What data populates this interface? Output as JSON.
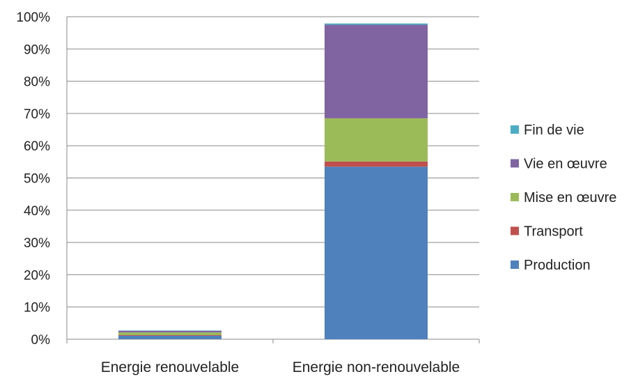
{
  "chart_data": {
    "type": "bar",
    "stacked": true,
    "title": "",
    "xlabel": "",
    "ylabel": "",
    "ylim": [
      0,
      100
    ],
    "y_ticks": [
      "0%",
      "10%",
      "20%",
      "30%",
      "40%",
      "50%",
      "60%",
      "70%",
      "80%",
      "90%",
      "100%"
    ],
    "grid": true,
    "legend_position": "right",
    "categories": [
      "Energie renouvelable",
      "Energie non-renouvelable"
    ],
    "series": [
      {
        "name": "Production",
        "color": "#4F81BD",
        "values": [
          1.1,
          53.5
        ]
      },
      {
        "name": "Transport",
        "color": "#C0504D",
        "values": [
          0.2,
          1.6
        ]
      },
      {
        "name": "Mise en œuvre",
        "color": "#9BBB59",
        "values": [
          0.8,
          13.4
        ]
      },
      {
        "name": "Vie en œuvre",
        "color": "#8064A2",
        "values": [
          0.5,
          29.0
        ]
      },
      {
        "name": "Fin de vie",
        "color": "#4BACC6",
        "values": [
          0.1,
          0.4
        ]
      }
    ]
  }
}
